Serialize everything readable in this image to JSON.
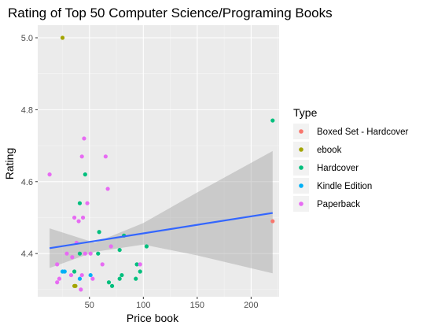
{
  "chart_data": {
    "type": "scatter",
    "title": "Rating of Top 50 Computer Science/Programing Books",
    "xlabel": "Price book",
    "ylabel": "Rating",
    "xlim": [
      2,
      226
    ],
    "ylim": [
      4.28,
      5.035
    ],
    "x_ticks": [
      50,
      100,
      150,
      200
    ],
    "x_tick_labels": [
      "50",
      "100",
      "150",
      "200"
    ],
    "y_ticks": [
      4.4,
      4.6,
      4.8,
      5.0
    ],
    "y_tick_labels": [
      "4.4",
      "4.6",
      "4.8",
      "5.0"
    ],
    "grid": true,
    "legend": {
      "title": "Type",
      "placement": "right",
      "entries": [
        {
          "name": "Boxed Set - Hardcover",
          "color": "#F8766D"
        },
        {
          "name": "ebook",
          "color": "#A3A500"
        },
        {
          "name": "Hardcover",
          "color": "#00BF7D"
        },
        {
          "name": "Kindle Edition",
          "color": "#00B0F6"
        },
        {
          "name": "Paperback",
          "color": "#E76BF3"
        }
      ]
    },
    "series": [
      {
        "name": "Boxed Set - Hardcover",
        "color": "#F8766D",
        "points": [
          [
            220,
            4.49
          ]
        ]
      },
      {
        "name": "ebook",
        "color": "#A3A500",
        "points": [
          [
            25,
            5.0
          ],
          [
            36,
            4.31
          ],
          [
            37,
            4.31
          ]
        ]
      },
      {
        "name": "Hardcover",
        "color": "#00BF7D",
        "points": [
          [
            220,
            4.77
          ],
          [
            46,
            4.62
          ],
          [
            41,
            4.54
          ],
          [
            59,
            4.46
          ],
          [
            82,
            4.45
          ],
          [
            103,
            4.42
          ],
          [
            78,
            4.41
          ],
          [
            41,
            4.4
          ],
          [
            58,
            4.4
          ],
          [
            94,
            4.37
          ],
          [
            36,
            4.35
          ],
          [
            97,
            4.35
          ],
          [
            80,
            4.34
          ],
          [
            78,
            4.33
          ],
          [
            68,
            4.32
          ],
          [
            93,
            4.33
          ],
          [
            71,
            4.31
          ]
        ]
      },
      {
        "name": "Kindle Edition",
        "color": "#00B0F6",
        "points": [
          [
            25,
            4.35
          ],
          [
            27,
            4.35
          ],
          [
            41,
            4.33
          ],
          [
            51,
            4.34
          ]
        ]
      },
      {
        "name": "Paperback",
        "color": "#E76BF3",
        "points": [
          [
            13,
            4.62
          ],
          [
            45,
            4.72
          ],
          [
            43,
            4.67
          ],
          [
            65,
            4.67
          ],
          [
            48,
            4.54
          ],
          [
            67,
            4.58
          ],
          [
            36,
            4.5
          ],
          [
            40,
            4.49
          ],
          [
            44,
            4.5
          ],
          [
            38,
            4.43
          ],
          [
            70,
            4.42
          ],
          [
            29,
            4.4
          ],
          [
            34,
            4.39
          ],
          [
            46,
            4.4
          ],
          [
            51,
            4.4
          ],
          [
            20,
            4.37
          ],
          [
            62,
            4.37
          ],
          [
            97,
            4.37
          ],
          [
            22,
            4.33
          ],
          [
            20,
            4.32
          ],
          [
            33,
            4.34
          ],
          [
            43,
            4.34
          ],
          [
            53,
            4.33
          ],
          [
            42,
            4.3
          ]
        ]
      }
    ],
    "trend": {
      "label": "linear fit",
      "line": [
        [
          13,
          4.415
        ],
        [
          220,
          4.513
        ]
      ],
      "band_upper": [
        [
          13,
          4.47
        ],
        [
          55,
          4.43
        ],
        [
          100,
          4.485
        ],
        [
          150,
          4.57
        ],
        [
          220,
          4.685
        ]
      ],
      "band_lower": [
        [
          13,
          4.36
        ],
        [
          55,
          4.405
        ],
        [
          100,
          4.425
        ],
        [
          150,
          4.395
        ],
        [
          220,
          4.345
        ]
      ]
    }
  }
}
